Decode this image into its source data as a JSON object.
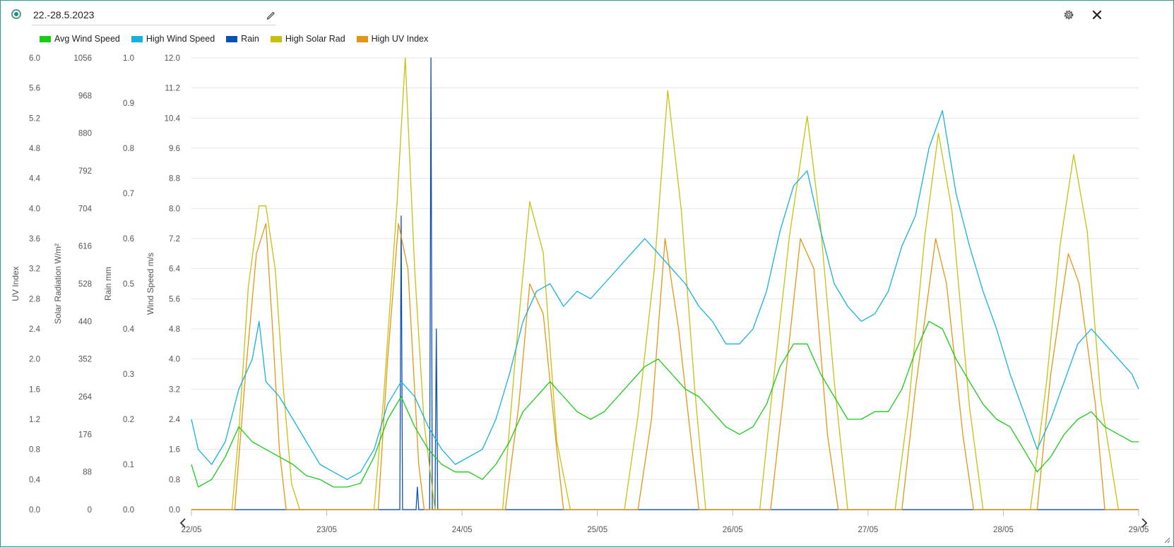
{
  "header": {
    "title": "22.-28.5.2023"
  },
  "icons": {
    "edit": "pencil-icon",
    "settings": "gear-icon",
    "close": "close-icon",
    "status": "status-dot-icon",
    "prev": "chevron-left-icon",
    "next": "chevron-right-icon"
  },
  "colors": {
    "avg_wind": "#18cc18",
    "high_wind": "#16b1de",
    "rain": "#0d4fb3",
    "solar": "#c8c10c",
    "uv": "#e39614",
    "frame": "#2a9d8f"
  },
  "chart_data": {
    "type": "line",
    "legend_position": "top-left",
    "grid": true,
    "x_range": [
      "22/05",
      "29/05"
    ],
    "x_ticks": [
      "22/05",
      "23/05",
      "24/05",
      "25/05",
      "26/05",
      "27/05",
      "28/05",
      "29/05"
    ],
    "axes": [
      {
        "id": "uv",
        "label": "UV Index",
        "min": 0,
        "max": 6,
        "ticks": [
          "0.0",
          "0.4",
          "0.8",
          "1.2",
          "1.6",
          "2.0",
          "2.4",
          "2.8",
          "3.2",
          "3.6",
          "4.0",
          "4.4",
          "4.8",
          "5.2",
          "5.6",
          "6.0"
        ]
      },
      {
        "id": "solar",
        "label": "Solar Radiation W/m²",
        "min": 0,
        "max": 1056,
        "ticks": [
          "0",
          "88",
          "176",
          "264",
          "352",
          "440",
          "528",
          "616",
          "704",
          "792",
          "880",
          "968",
          "1056"
        ]
      },
      {
        "id": "rain",
        "label": "Rain mm",
        "min": 0,
        "max": 1,
        "ticks": [
          "0.0",
          "0.1",
          "0.2",
          "0.3",
          "0.4",
          "0.5",
          "0.6",
          "0.7",
          "0.8",
          "0.9",
          "1.0"
        ]
      },
      {
        "id": "wind",
        "label": "Wind Speed m/s",
        "min": 0,
        "max": 12,
        "ticks": [
          "0.0",
          "0.8",
          "1.6",
          "2.4",
          "3.2",
          "4.0",
          "4.8",
          "5.6",
          "6.4",
          "7.2",
          "8.0",
          "8.8",
          "9.6",
          "10.4",
          "11.2",
          "12.0"
        ]
      }
    ],
    "series": [
      {
        "name": "Avg Wind Speed",
        "axis": "wind",
        "color": "#18cc18",
        "points": [
          [
            0,
            1.2
          ],
          [
            0.05,
            0.6
          ],
          [
            0.15,
            0.8
          ],
          [
            0.25,
            1.4
          ],
          [
            0.35,
            2.2
          ],
          [
            0.45,
            1.8
          ],
          [
            0.55,
            1.6
          ],
          [
            0.65,
            1.4
          ],
          [
            0.75,
            1.2
          ],
          [
            0.85,
            0.9
          ],
          [
            0.95,
            0.8
          ],
          [
            1.05,
            0.6
          ],
          [
            1.15,
            0.6
          ],
          [
            1.25,
            0.7
          ],
          [
            1.35,
            1.4
          ],
          [
            1.45,
            2.4
          ],
          [
            1.55,
            3.0
          ],
          [
            1.65,
            2.2
          ],
          [
            1.75,
            1.6
          ],
          [
            1.85,
            1.2
          ],
          [
            1.95,
            1.0
          ],
          [
            2.05,
            1.0
          ],
          [
            2.15,
            0.8
          ],
          [
            2.25,
            1.2
          ],
          [
            2.35,
            1.8
          ],
          [
            2.45,
            2.6
          ],
          [
            2.55,
            3.0
          ],
          [
            2.65,
            3.4
          ],
          [
            2.75,
            3.0
          ],
          [
            2.85,
            2.6
          ],
          [
            2.95,
            2.4
          ],
          [
            3.05,
            2.6
          ],
          [
            3.15,
            3.0
          ],
          [
            3.25,
            3.4
          ],
          [
            3.35,
            3.8
          ],
          [
            3.45,
            4.0
          ],
          [
            3.55,
            3.6
          ],
          [
            3.65,
            3.2
          ],
          [
            3.75,
            3.0
          ],
          [
            3.85,
            2.6
          ],
          [
            3.95,
            2.2
          ],
          [
            4.05,
            2.0
          ],
          [
            4.15,
            2.2
          ],
          [
            4.25,
            2.8
          ],
          [
            4.35,
            3.8
          ],
          [
            4.45,
            4.4
          ],
          [
            4.55,
            4.4
          ],
          [
            4.65,
            3.6
          ],
          [
            4.75,
            3.0
          ],
          [
            4.85,
            2.4
          ],
          [
            4.95,
            2.4
          ],
          [
            5.05,
            2.6
          ],
          [
            5.15,
            2.6
          ],
          [
            5.25,
            3.2
          ],
          [
            5.35,
            4.2
          ],
          [
            5.45,
            5.0
          ],
          [
            5.55,
            4.8
          ],
          [
            5.65,
            4.0
          ],
          [
            5.75,
            3.4
          ],
          [
            5.85,
            2.8
          ],
          [
            5.95,
            2.4
          ],
          [
            6.05,
            2.2
          ],
          [
            6.15,
            1.6
          ],
          [
            6.25,
            1.0
          ],
          [
            6.35,
            1.4
          ],
          [
            6.45,
            2.0
          ],
          [
            6.55,
            2.4
          ],
          [
            6.65,
            2.6
          ],
          [
            6.75,
            2.2
          ],
          [
            6.85,
            2.0
          ],
          [
            6.95,
            1.8
          ],
          [
            7.0,
            1.8
          ]
        ]
      },
      {
        "name": "High Wind Speed",
        "axis": "wind",
        "color": "#16b1de",
        "points": [
          [
            0,
            2.4
          ],
          [
            0.05,
            1.6
          ],
          [
            0.15,
            1.2
          ],
          [
            0.25,
            1.8
          ],
          [
            0.35,
            3.2
          ],
          [
            0.45,
            4.0
          ],
          [
            0.5,
            5.0
          ],
          [
            0.55,
            3.4
          ],
          [
            0.65,
            3.0
          ],
          [
            0.75,
            2.4
          ],
          [
            0.85,
            1.8
          ],
          [
            0.95,
            1.2
          ],
          [
            1.05,
            1.0
          ],
          [
            1.15,
            0.8
          ],
          [
            1.25,
            1.0
          ],
          [
            1.35,
            1.6
          ],
          [
            1.45,
            2.8
          ],
          [
            1.55,
            3.4
          ],
          [
            1.65,
            3.0
          ],
          [
            1.75,
            2.2
          ],
          [
            1.85,
            1.6
          ],
          [
            1.95,
            1.2
          ],
          [
            2.05,
            1.4
          ],
          [
            2.15,
            1.6
          ],
          [
            2.25,
            2.4
          ],
          [
            2.35,
            3.6
          ],
          [
            2.45,
            5.0
          ],
          [
            2.55,
            5.8
          ],
          [
            2.65,
            6.0
          ],
          [
            2.75,
            5.4
          ],
          [
            2.85,
            5.8
          ],
          [
            2.95,
            5.6
          ],
          [
            3.05,
            6.0
          ],
          [
            3.15,
            6.4
          ],
          [
            3.25,
            6.8
          ],
          [
            3.35,
            7.2
          ],
          [
            3.45,
            6.8
          ],
          [
            3.55,
            6.4
          ],
          [
            3.65,
            6.0
          ],
          [
            3.75,
            5.4
          ],
          [
            3.85,
            5.0
          ],
          [
            3.95,
            4.4
          ],
          [
            4.05,
            4.4
          ],
          [
            4.15,
            4.8
          ],
          [
            4.25,
            5.8
          ],
          [
            4.35,
            7.4
          ],
          [
            4.45,
            8.6
          ],
          [
            4.55,
            9.0
          ],
          [
            4.65,
            7.4
          ],
          [
            4.75,
            6.0
          ],
          [
            4.85,
            5.4
          ],
          [
            4.95,
            5.0
          ],
          [
            5.05,
            5.2
          ],
          [
            5.15,
            5.8
          ],
          [
            5.25,
            7.0
          ],
          [
            5.35,
            7.8
          ],
          [
            5.45,
            9.6
          ],
          [
            5.55,
            10.6
          ],
          [
            5.65,
            8.4
          ],
          [
            5.75,
            7.0
          ],
          [
            5.85,
            5.8
          ],
          [
            5.95,
            4.8
          ],
          [
            6.05,
            3.6
          ],
          [
            6.15,
            2.6
          ],
          [
            6.25,
            1.6
          ],
          [
            6.35,
            2.4
          ],
          [
            6.45,
            3.4
          ],
          [
            6.55,
            4.4
          ],
          [
            6.65,
            4.8
          ],
          [
            6.75,
            4.4
          ],
          [
            6.85,
            4.0
          ],
          [
            6.95,
            3.6
          ],
          [
            7.0,
            3.2
          ]
        ]
      },
      {
        "name": "Rain",
        "axis": "rain",
        "color": "#0d4fb3",
        "points": [
          [
            0,
            0
          ],
          [
            1.54,
            0
          ],
          [
            1.55,
            0.65
          ],
          [
            1.56,
            0
          ],
          [
            1.66,
            0
          ],
          [
            1.67,
            0.05
          ],
          [
            1.68,
            0
          ],
          [
            1.76,
            0
          ],
          [
            1.77,
            1.0
          ],
          [
            1.78,
            0
          ],
          [
            1.8,
            0
          ],
          [
            1.81,
            0.4
          ],
          [
            1.82,
            0
          ],
          [
            7.0,
            0
          ]
        ]
      },
      {
        "name": "High Solar Rad",
        "axis": "solar",
        "color": "#c8c10c",
        "points": [
          [
            0,
            0
          ],
          [
            0.3,
            0
          ],
          [
            0.35,
            180
          ],
          [
            0.42,
            520
          ],
          [
            0.5,
            710
          ],
          [
            0.55,
            710
          ],
          [
            0.62,
            560
          ],
          [
            0.68,
            280
          ],
          [
            0.74,
            60
          ],
          [
            0.8,
            0
          ],
          [
            1.35,
            0
          ],
          [
            1.42,
            260
          ],
          [
            1.52,
            720
          ],
          [
            1.58,
            1056
          ],
          [
            1.65,
            560
          ],
          [
            1.72,
            200
          ],
          [
            1.8,
            0
          ],
          [
            2.3,
            0
          ],
          [
            2.4,
            380
          ],
          [
            2.5,
            720
          ],
          [
            2.6,
            600
          ],
          [
            2.7,
            160
          ],
          [
            2.8,
            0
          ],
          [
            3.2,
            0
          ],
          [
            3.3,
            220
          ],
          [
            3.42,
            560
          ],
          [
            3.52,
            980
          ],
          [
            3.62,
            700
          ],
          [
            3.72,
            280
          ],
          [
            3.8,
            0
          ],
          [
            4.2,
            0
          ],
          [
            4.3,
            300
          ],
          [
            4.42,
            640
          ],
          [
            4.55,
            920
          ],
          [
            4.65,
            660
          ],
          [
            4.75,
            300
          ],
          [
            4.85,
            0
          ],
          [
            5.2,
            0
          ],
          [
            5.3,
            240
          ],
          [
            5.42,
            640
          ],
          [
            5.52,
            880
          ],
          [
            5.62,
            700
          ],
          [
            5.75,
            240
          ],
          [
            5.85,
            0
          ],
          [
            6.2,
            0
          ],
          [
            6.32,
            300
          ],
          [
            6.42,
            620
          ],
          [
            6.52,
            830
          ],
          [
            6.62,
            650
          ],
          [
            6.72,
            260
          ],
          [
            6.85,
            0
          ],
          [
            7.0,
            0
          ]
        ]
      },
      {
        "name": "High UV Index",
        "axis": "uv",
        "color": "#e39614",
        "points": [
          [
            0,
            0
          ],
          [
            0.32,
            0
          ],
          [
            0.4,
            1.8
          ],
          [
            0.48,
            3.4
          ],
          [
            0.55,
            3.8
          ],
          [
            0.6,
            2.4
          ],
          [
            0.65,
            0.8
          ],
          [
            0.7,
            0
          ],
          [
            1.38,
            0
          ],
          [
            1.45,
            2.0
          ],
          [
            1.53,
            3.8
          ],
          [
            1.6,
            3.2
          ],
          [
            1.68,
            0.6
          ],
          [
            1.72,
            0
          ],
          [
            2.32,
            0
          ],
          [
            2.42,
            1.4
          ],
          [
            2.5,
            3.0
          ],
          [
            2.6,
            2.6
          ],
          [
            2.7,
            0.8
          ],
          [
            2.75,
            0
          ],
          [
            3.3,
            0
          ],
          [
            3.4,
            1.2
          ],
          [
            3.5,
            3.6
          ],
          [
            3.6,
            2.4
          ],
          [
            3.7,
            0.8
          ],
          [
            3.75,
            0
          ],
          [
            4.28,
            0
          ],
          [
            4.38,
            1.6
          ],
          [
            4.5,
            3.6
          ],
          [
            4.6,
            3.2
          ],
          [
            4.7,
            1.0
          ],
          [
            4.78,
            0
          ],
          [
            5.25,
            0
          ],
          [
            5.35,
            1.6
          ],
          [
            5.5,
            3.6
          ],
          [
            5.58,
            3.0
          ],
          [
            5.7,
            1.0
          ],
          [
            5.78,
            0
          ],
          [
            6.25,
            0
          ],
          [
            6.35,
            1.8
          ],
          [
            6.48,
            3.4
          ],
          [
            6.56,
            3.0
          ],
          [
            6.68,
            1.4
          ],
          [
            6.75,
            0
          ],
          [
            7.0,
            0
          ]
        ]
      }
    ]
  }
}
